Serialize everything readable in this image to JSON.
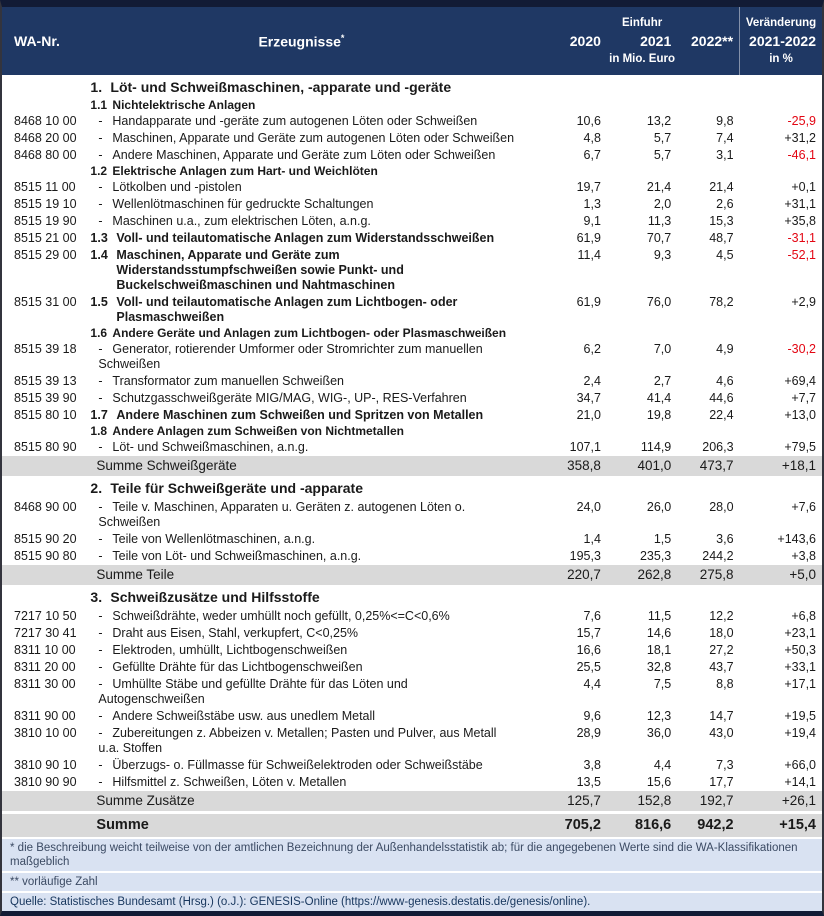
{
  "header": {
    "col_wa": "WA-Nr.",
    "col_product": "Erzeugnisse",
    "product_sup": "*",
    "group_einfuhr": "Einfuhr",
    "group_change": "Veränderung",
    "col_2020": "2020",
    "col_2021": "2021",
    "col_2022": "2022**",
    "col_change": "2021-2022",
    "unit_value": "in Mio. Euro",
    "unit_change": "in %"
  },
  "colors": {
    "header_bg": "#1F3864",
    "summary_row_bg": "#D9D9D9",
    "footer_bg": "#D9E2F2",
    "negative_value": "#E30613",
    "frame_border": "#121B35"
  },
  "rows": [
    {
      "type": "section",
      "label": "1.",
      "text": "Löt- und Schweißmaschinen, -apparate und -geräte"
    },
    {
      "type": "subsection",
      "label": "1.1",
      "text": "Nichtelektrische Anlagen"
    },
    {
      "type": "item",
      "wa": "8468 10 00",
      "text": "Handapparate und -geräte zum autogenen Löten oder Schweißen",
      "v2020": "10,6",
      "v2021": "13,2",
      "v2022": "9,8",
      "chg": "-25,9"
    },
    {
      "type": "item",
      "wa": "8468 20 00",
      "text": "Maschinen, Apparate und Geräte zum autogenen Löten oder Schweißen",
      "v2020": "4,8",
      "v2021": "5,7",
      "v2022": "7,4",
      "chg": "+31,2"
    },
    {
      "type": "item",
      "wa": "8468 80 00",
      "text": "Andere Maschinen, Apparate und Geräte zum Löten oder Schweißen",
      "v2020": "6,7",
      "v2021": "5,7",
      "v2022": "3,1",
      "chg": "-46,1"
    },
    {
      "type": "subsection",
      "label": "1.2",
      "text": "Elektrische Anlagen zum Hart- und Weichlöten"
    },
    {
      "type": "item",
      "wa": "8515 11 00",
      "text": "Lötkolben und -pistolen",
      "v2020": "19,7",
      "v2021": "21,4",
      "v2022": "21,4",
      "chg": "+0,1"
    },
    {
      "type": "item",
      "wa": "8515 19 10",
      "text": "Wellenlötmaschinen für gedruckte Schaltungen",
      "v2020": "1,3",
      "v2021": "2,0",
      "v2022": "2,6",
      "chg": "+31,1"
    },
    {
      "type": "item",
      "wa": "8515 19 90",
      "text": "Maschinen u.a., zum elektrischen Löten, a.n.g.",
      "v2020": "9,1",
      "v2021": "11,3",
      "v2022": "15,3",
      "chg": "+35,8"
    },
    {
      "type": "bolditem",
      "wa": "8515 21 00",
      "label": "1.3",
      "text": "Voll- und teilautomatische Anlagen zum Widerstandsschweißen",
      "v2020": "61,9",
      "v2021": "70,7",
      "v2022": "48,7",
      "chg": "-31,1"
    },
    {
      "type": "bolditem",
      "wa": "8515 29 00",
      "label": "1.4",
      "text": "Maschinen, Apparate und Geräte zum Widerstandsstumpfschweißen sowie Punkt- und Buckelschweißmaschinen und Nahtmaschinen",
      "v2020": "11,4",
      "v2021": "9,3",
      "v2022": "4,5",
      "chg": "-52,1"
    },
    {
      "type": "bolditem",
      "wa": "8515 31 00",
      "label": "1.5",
      "text": "Voll- und teilautomatische Anlagen zum Lichtbogen- oder Plasmaschweißen",
      "v2020": "61,9",
      "v2021": "76,0",
      "v2022": "78,2",
      "chg": "+2,9"
    },
    {
      "type": "subsection",
      "label": "1.6",
      "text": "Andere Geräte und Anlagen zum Lichtbogen- oder Plasmaschweißen"
    },
    {
      "type": "item",
      "wa": "8515 39 18",
      "text": "Generator, rotierender Umformer oder Stromrichter zum manuellen Schweißen",
      "v2020": "6,2",
      "v2021": "7,0",
      "v2022": "4,9",
      "chg": "-30,2"
    },
    {
      "type": "item",
      "wa": "8515 39 13",
      "text": "Transformator zum manuellen Schweißen",
      "v2020": "2,4",
      "v2021": "2,7",
      "v2022": "4,6",
      "chg": "+69,4"
    },
    {
      "type": "item",
      "wa": "8515 39 90",
      "text": "Schutzgasschweißgeräte MIG/MAG, WIG-, UP-, RES-Verfahren",
      "v2020": "34,7",
      "v2021": "41,4",
      "v2022": "44,6",
      "chg": "+7,7"
    },
    {
      "type": "bolditem",
      "wa": "8515 80 10",
      "label": "1.7",
      "text": "Andere Maschinen zum Schweißen und Spritzen von Metallen",
      "v2020": "21,0",
      "v2021": "19,8",
      "v2022": "22,4",
      "chg": "+13,0"
    },
    {
      "type": "subsection",
      "label": "1.8",
      "text": "Andere Anlagen zum Schweißen von Nichtmetallen"
    },
    {
      "type": "item",
      "wa": "8515 80 90",
      "text": "Löt- und Schweißmaschinen, a.n.g.",
      "v2020": "107,1",
      "v2021": "114,9",
      "v2022": "206,3",
      "chg": "+79,5"
    },
    {
      "type": "sum",
      "text": "Summe Schweißgeräte",
      "v2020": "358,8",
      "v2021": "401,0",
      "v2022": "473,7",
      "chg": "+18,1"
    },
    {
      "type": "section",
      "label": "2.",
      "text": "Teile für Schweißgeräte und -apparate"
    },
    {
      "type": "item",
      "wa": "8468 90 00",
      "text": "Teile v. Maschinen, Apparaten u. Geräten z. autogenen Löten o. Schweißen",
      "v2020": "24,0",
      "v2021": "26,0",
      "v2022": "28,0",
      "chg": "+7,6"
    },
    {
      "type": "item",
      "wa": "8515 90 20",
      "text": "Teile von Wellenlötmaschinen, a.n.g.",
      "v2020": "1,4",
      "v2021": "1,5",
      "v2022": "3,6",
      "chg": "+143,6"
    },
    {
      "type": "item",
      "wa": "8515 90 80",
      "text": "Teile von Löt- und Schweißmaschinen, a.n.g.",
      "v2020": "195,3",
      "v2021": "235,3",
      "v2022": "244,2",
      "chg": "+3,8"
    },
    {
      "type": "sum",
      "text": "Summe Teile",
      "v2020": "220,7",
      "v2021": "262,8",
      "v2022": "275,8",
      "chg": "+5,0"
    },
    {
      "type": "section",
      "label": "3.",
      "text": "Schweißzusätze und Hilfsstoffe"
    },
    {
      "type": "item",
      "wa": "7217 10 50",
      "text": "Schweißdrähte, weder umhüllt noch gefüllt, 0,25%<=C<0,6%",
      "v2020": "7,6",
      "v2021": "11,5",
      "v2022": "12,2",
      "chg": "+6,8"
    },
    {
      "type": "item",
      "wa": "7217 30 41",
      "text": "Draht aus Eisen, Stahl, verkupfert, C<0,25%",
      "v2020": "15,7",
      "v2021": "14,6",
      "v2022": "18,0",
      "chg": "+23,1"
    },
    {
      "type": "item",
      "wa": "8311 10 00",
      "text": "Elektroden, umhüllt, Lichtbogenschweißen",
      "v2020": "16,6",
      "v2021": "18,1",
      "v2022": "27,2",
      "chg": "+50,3"
    },
    {
      "type": "item",
      "wa": "8311 20 00",
      "text": "Gefüllte Drähte für das Lichtbogenschweißen",
      "v2020": "25,5",
      "v2021": "32,8",
      "v2022": "43,7",
      "chg": "+33,1"
    },
    {
      "type": "item",
      "wa": "8311 30 00",
      "text": "Umhüllte Stäbe und gefüllte Drähte für das Löten und Autogenschweißen",
      "v2020": "4,4",
      "v2021": "7,5",
      "v2022": "8,8",
      "chg": "+17,1"
    },
    {
      "type": "item",
      "wa": "8311 90 00",
      "text": "Andere Schweißstäbe usw. aus unedlem Metall",
      "v2020": "9,6",
      "v2021": "12,3",
      "v2022": "14,7",
      "chg": "+19,5"
    },
    {
      "type": "item",
      "wa": "3810 10 00",
      "text": "Zubereitungen z. Abbeizen v. Metallen; Pasten und Pulver, aus Metall u.a. Stoffen",
      "v2020": "28,9",
      "v2021": "36,0",
      "v2022": "43,0",
      "chg": "+19,4"
    },
    {
      "type": "item",
      "wa": "3810 90 10",
      "text": "Überzugs- o. Füllmasse für Schweißelektroden oder Schweißstäbe",
      "v2020": "3,8",
      "v2021": "4,4",
      "v2022": "7,3",
      "chg": "+66,0"
    },
    {
      "type": "item",
      "wa": "3810 90 90",
      "text": "Hilfsmittel z. Schweißen, Löten v. Metallen",
      "v2020": "13,5",
      "v2021": "15,6",
      "v2022": "17,7",
      "chg": "+14,1"
    },
    {
      "type": "sum",
      "text": "Summe Zusätze",
      "v2020": "125,7",
      "v2021": "152,8",
      "v2022": "192,7",
      "chg": "+26,1"
    },
    {
      "type": "total",
      "text": "Summe",
      "v2020": "705,2",
      "v2021": "816,6",
      "v2022": "942,2",
      "chg": "+15,4"
    }
  ],
  "footer": {
    "note1": "* die Beschreibung weicht teilweise von der amtlichen Bezeichnung der Außenhandelsstatistik ab; für die angegebenen Werte sind die WA-Klassifikationen maßgeblich",
    "note2": "** vorläufige Zahl",
    "source": "Quelle: Statistisches Bundesamt (Hrsg.) (o.J.): GENESIS-Online (https://www-genesis.destatis.de/genesis/online)."
  }
}
